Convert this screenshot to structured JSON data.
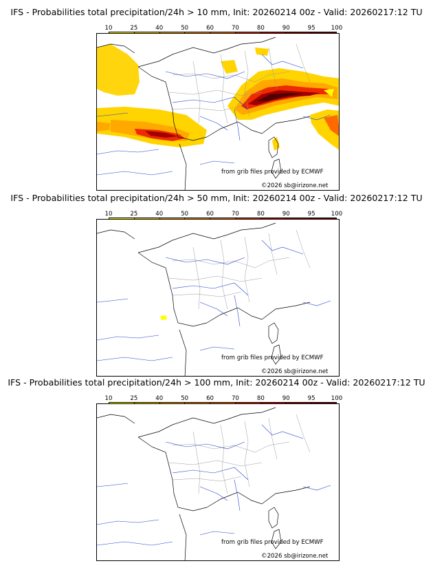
{
  "colorbar": {
    "ticks": [
      "10",
      "25",
      "40",
      "50",
      "60",
      "70",
      "80",
      "90",
      "95",
      "100"
    ],
    "colors": [
      "#ffff00",
      "#ffd400",
      "#ffa800",
      "#ff8a00",
      "#ff6a00",
      "#ee2a00",
      "#cc0000",
      "#a00000",
      "#780000"
    ]
  },
  "panels": [
    {
      "title": "IFS - Probabilities total precipitation/24h > 10 mm, Init: 20260214 00z - Valid: 20260217:12 TU",
      "credit_source": "from grib files provided by ECMWF",
      "credit_copyright": "©2026 sb@irizone.net"
    },
    {
      "title": "IFS - Probabilities total precipitation/24h > 50 mm, Init: 20260214 00z - Valid: 20260217:12 TU",
      "credit_source": "from grib files provided by ECMWF",
      "credit_copyright": "©2026 sb@irizone.net"
    },
    {
      "title": "IFS - Probabilities total precipitation/24h > 100 mm, Init: 20260214 00z - Valid: 20260217:12 TU",
      "credit_source": "from grib files provided by ECMWF",
      "credit_copyright": "©2026 sb@irizone.net"
    }
  ]
}
